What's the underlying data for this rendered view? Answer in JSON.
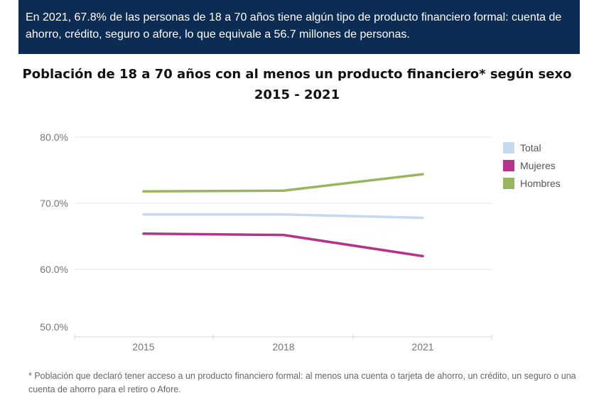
{
  "banner": {
    "text": "En 2021, 67.8% de las personas de 18 a 70 años tiene algún tipo de producto financiero formal: cuenta de ahorro, crédito, seguro o afore, lo que equivale a 56.7 millones de personas."
  },
  "footnote": "* Población que declaró tener acceso a un producto financiero formal: al menos una cuenta o tarjeta de ahorro, un crédito, un seguro o una cuenta de ahorro para el retiro o Afore.",
  "chart_data": {
    "type": "line",
    "title": "Población de 18 a 70 años con al menos un producto financiero* según sexo",
    "subtitle": "2015 - 2021",
    "x": [
      "2015",
      "2018",
      "2021"
    ],
    "y_ticks": [
      "80.0%",
      "70.0%",
      "60.0%",
      "50.0%"
    ],
    "ylim": [
      50,
      80
    ],
    "grid": true,
    "legend_position": "top-right",
    "series": [
      {
        "name": "Total",
        "color": "#c5d9f1",
        "values": [
          68.3,
          68.3,
          67.8
        ]
      },
      {
        "name": "Mujeres",
        "color": "#b5338a",
        "values": [
          65.4,
          65.2,
          62.0
        ]
      },
      {
        "name": "Hombres",
        "color": "#9ab560",
        "values": [
          71.8,
          71.9,
          74.4
        ]
      }
    ]
  }
}
